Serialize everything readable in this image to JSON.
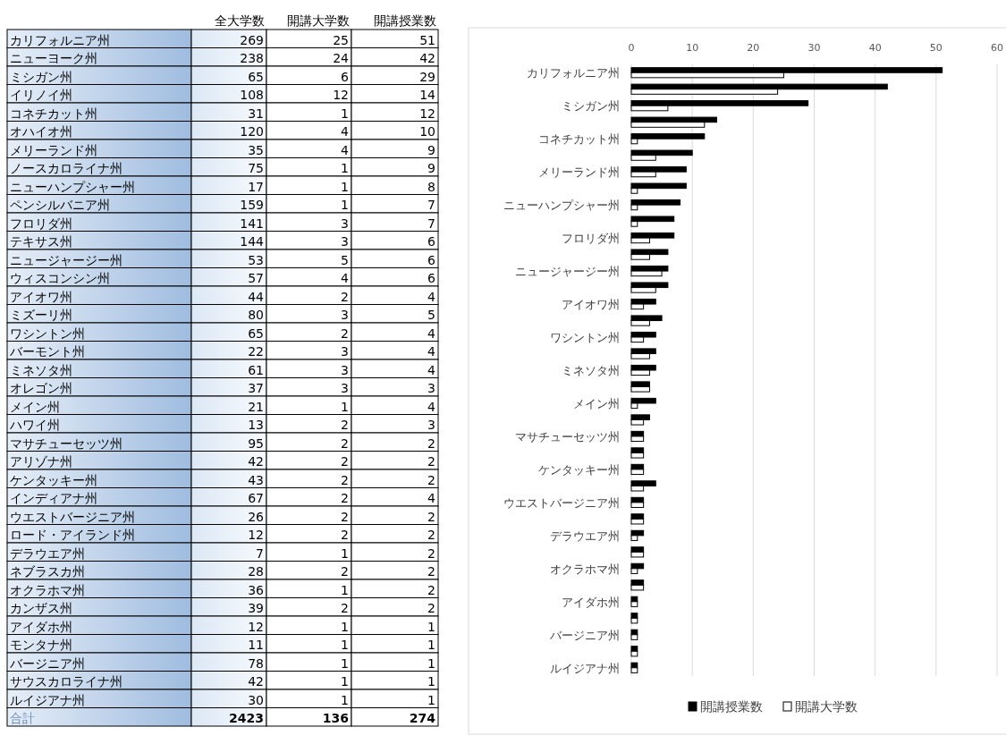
{
  "chart_data": [
    {
      "type": "other",
      "data_labels": true,
      "categories": [
        "カリフォルニア州",
        "ニューヨーク州",
        "ミシガン州",
        "イリノイ州",
        "コネチカット州",
        "オハイオ州",
        "メリーランド州",
        "ノースカロライナ州",
        "ニューハンプシャー州",
        "ペンシルバニア州",
        "フロリダ州",
        "テキサス州",
        "ニュージャージー州",
        "ウィスコンシン州",
        "アイオワ州",
        "ミズーリ州",
        "ワシントン州",
        "バーモント州",
        "ミネソタ州",
        "オレゴン州",
        "メイン州",
        "ハワイ州",
        "マサチューセッツ州",
        "アリゾナ州",
        "ケンタッキー州",
        "インディアナ州",
        "ウエストバージニア州",
        "ロード・アイランド州",
        "デラウエア州",
        "ネブラスカ州",
        "オクラホマ州",
        "カンザス州",
        "アイダホ州",
        "モンタナ州",
        "バージニア州",
        "サウスカロライナ州",
        "ルイジアナ州",
        "合計"
      ],
      "series": [
        {
          "name": "全大学数",
          "values": [
            269,
            238,
            65,
            108,
            31,
            120,
            35,
            75,
            17,
            159,
            141,
            144,
            53,
            57,
            44,
            80,
            65,
            22,
            61,
            37,
            21,
            13,
            95,
            42,
            43,
            67,
            26,
            12,
            7,
            28,
            36,
            39,
            12,
            11,
            78,
            42,
            30,
            2423
          ]
        },
        {
          "name": "開講大学数",
          "values": [
            25,
            24,
            6,
            12,
            1,
            4,
            4,
            1,
            1,
            1,
            3,
            3,
            5,
            4,
            2,
            3,
            2,
            3,
            3,
            3,
            1,
            2,
            2,
            2,
            2,
            2,
            2,
            2,
            1,
            2,
            1,
            2,
            1,
            1,
            1,
            1,
            1,
            136
          ]
        },
        {
          "name": "開講授業数",
          "values": [
            51,
            42,
            29,
            14,
            12,
            10,
            9,
            9,
            8,
            7,
            7,
            6,
            6,
            6,
            4,
            5,
            4,
            4,
            4,
            3,
            4,
            3,
            2,
            2,
            2,
            4,
            2,
            2,
            2,
            2,
            2,
            2,
            1,
            1,
            1,
            1,
            1,
            274
          ]
        }
      ]
    },
    {
      "type": "bar",
      "orientation": "horizontal",
      "categories": [
        "カリフォルニア州",
        null,
        "ミシガン州",
        null,
        "コネチカット州",
        null,
        "メリーランド州",
        null,
        "ニューハンプシャー州",
        null,
        "フロリダ州",
        null,
        "ニュージャージー州",
        null,
        "アイオワ州",
        null,
        "ワシントン州",
        null,
        "ミネソタ州",
        null,
        "メイン州",
        null,
        "マサチューセッツ州",
        null,
        "ケンタッキー州",
        null,
        "ウエストバージニア州",
        null,
        "デラウエア州",
        null,
        "オクラホマ州",
        null,
        "アイダホ州",
        null,
        "バージニア州",
        null,
        "ルイジアナ州"
      ],
      "series": [
        {
          "name": "開講授業数",
          "color": "#000000",
          "values": [
            51,
            42,
            29,
            14,
            12,
            10,
            9,
            9,
            8,
            7,
            7,
            6,
            6,
            6,
            4,
            5,
            4,
            4,
            4,
            3,
            4,
            3,
            2,
            2,
            2,
            4,
            2,
            2,
            2,
            2,
            2,
            2,
            1,
            1,
            1,
            1,
            1
          ]
        },
        {
          "name": "開講大学数",
          "color": "#ffffff",
          "values": [
            25,
            24,
            6,
            12,
            1,
            4,
            4,
            1,
            1,
            1,
            3,
            3,
            5,
            4,
            2,
            3,
            2,
            3,
            3,
            3,
            1,
            2,
            2,
            2,
            2,
            2,
            2,
            2,
            1,
            2,
            1,
            2,
            1,
            1,
            1,
            1,
            1
          ]
        }
      ],
      "xlim": [
        0,
        60
      ],
      "xticks": [
        0,
        10,
        20,
        30,
        40,
        50,
        60
      ],
      "grid": "x",
      "legend": "bottom"
    }
  ]
}
